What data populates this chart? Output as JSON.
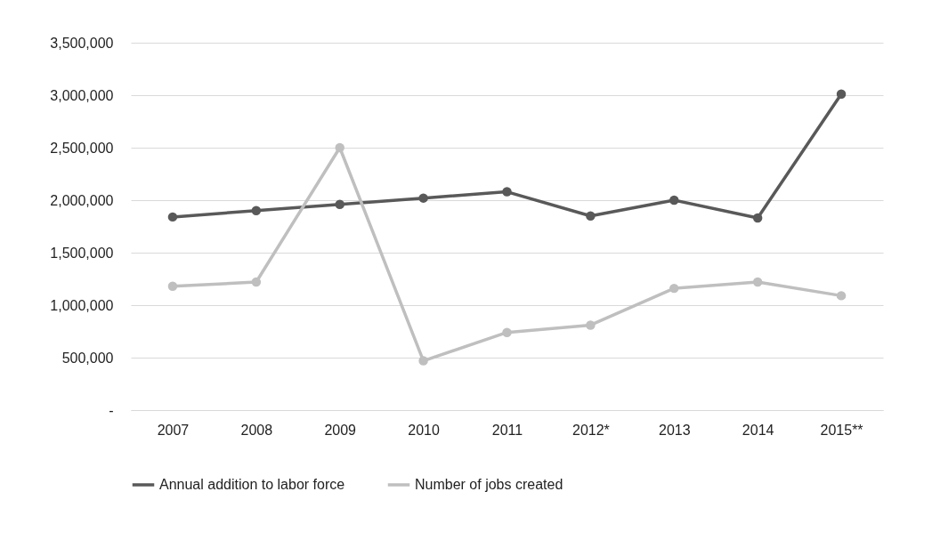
{
  "chart_data": {
    "type": "line",
    "categories": [
      "2007",
      "2008",
      "2009",
      "2010",
      "2011",
      "2012*",
      "2013",
      "2014",
      "2015**"
    ],
    "series": [
      {
        "name": "Annual addition to labor force",
        "color": "#595959",
        "values": [
          1840000,
          1900000,
          1960000,
          2020000,
          2080000,
          1850000,
          2000000,
          1830000,
          3010000
        ]
      },
      {
        "name": "Number of jobs created",
        "color": "#bfbfbf",
        "values": [
          1180000,
          1220000,
          2500000,
          470000,
          740000,
          810000,
          1160000,
          1220000,
          1090000
        ]
      }
    ],
    "ylim": [
      0,
      3500000
    ],
    "yticks": [
      {
        "value": 0,
        "label": "-"
      },
      {
        "value": 500000,
        "label": "500,000"
      },
      {
        "value": 1000000,
        "label": "1,000,000"
      },
      {
        "value": 1500000,
        "label": "1,500,000"
      },
      {
        "value": 2000000,
        "label": "2,000,000"
      },
      {
        "value": 2500000,
        "label": "2,500,000"
      },
      {
        "value": 3000000,
        "label": "3,000,000"
      },
      {
        "value": 3500000,
        "label": "3,500,000"
      }
    ],
    "grid": "y",
    "legend": "bottom",
    "marker": "circle",
    "line_style": "solid"
  }
}
